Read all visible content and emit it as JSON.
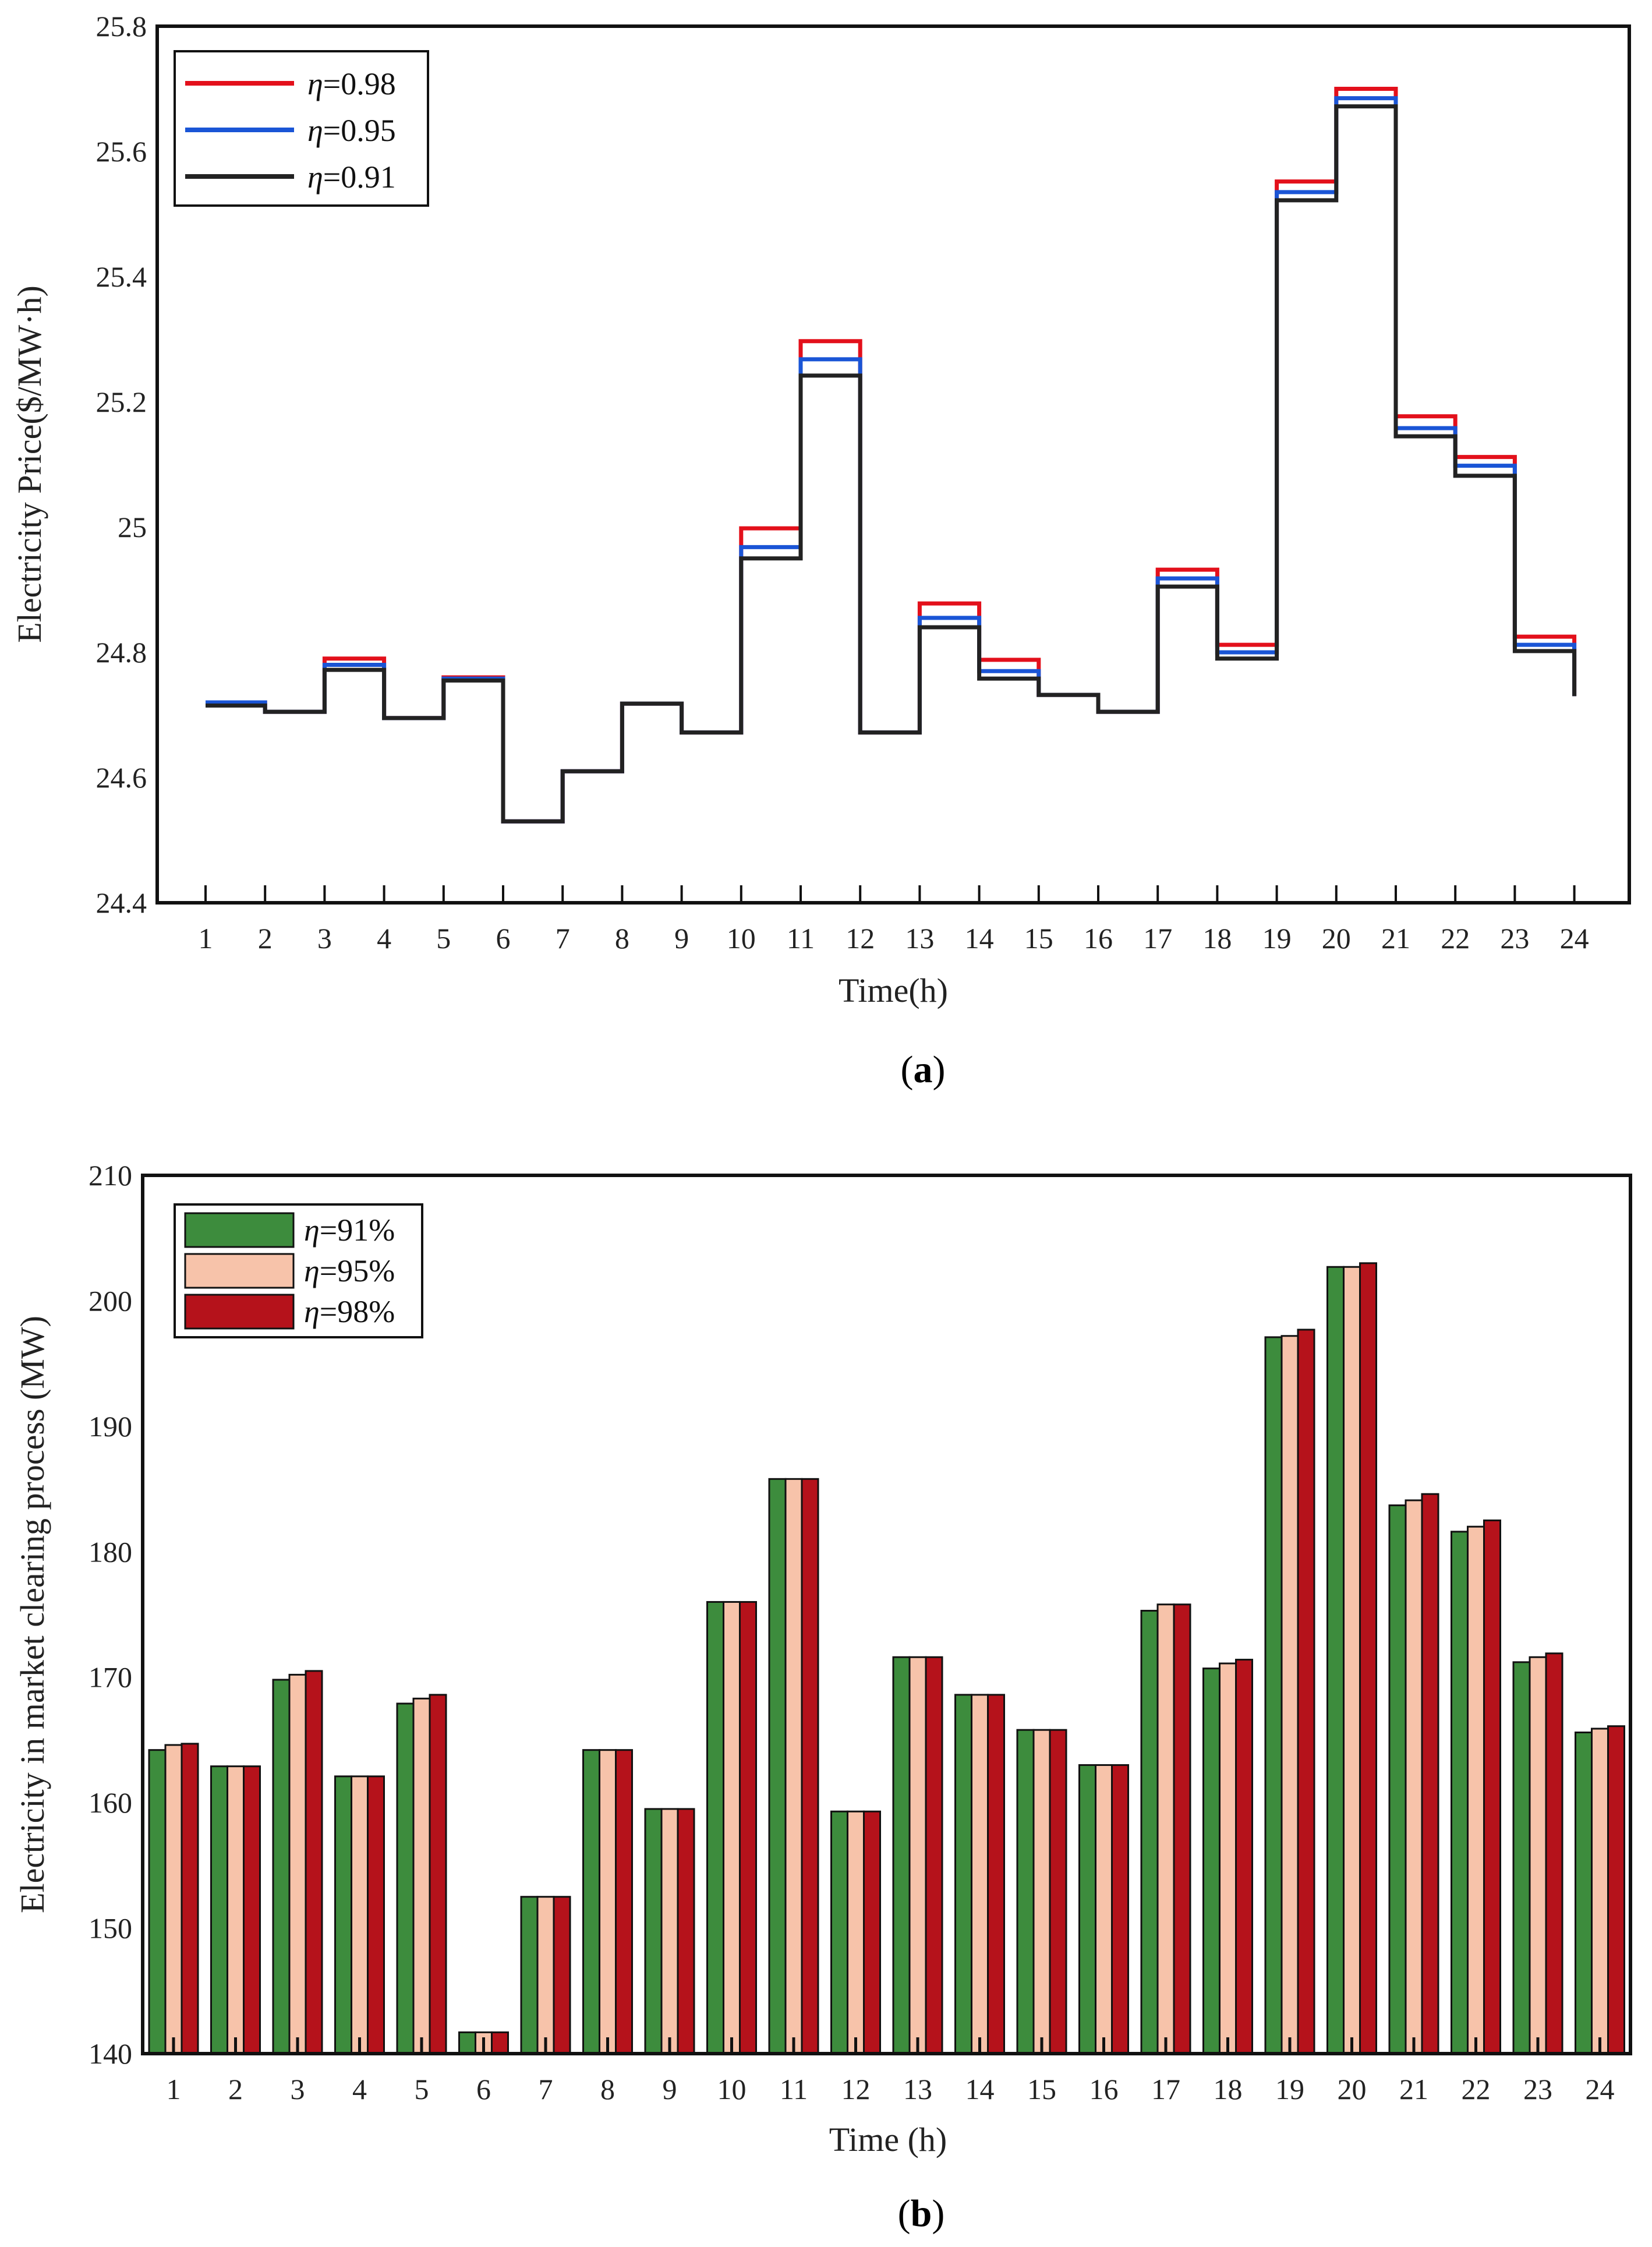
{
  "colors": {
    "red": "#e3101b",
    "blue": "#1a55d6",
    "black": "#222222",
    "green": "#3d8c3d",
    "peach": "#f7c3aa",
    "crimson": "#b5121b"
  },
  "chart_data": [
    {
      "id": "a",
      "type": "line",
      "step": true,
      "caption": "(a)",
      "caption_letter": "a",
      "xlabel": "Time(h)",
      "ylabel": "Electricity Price($/MW·h)",
      "ylim": [
        24.4,
        25.8
      ],
      "yticks": [
        "24.4",
        "24.6",
        "24.8",
        "25",
        "25.2",
        "25.4",
        "25.6",
        "25.8"
      ],
      "categories": [
        "1",
        "2",
        "3",
        "4",
        "5",
        "6",
        "7",
        "8",
        "9",
        "10",
        "11",
        "12",
        "13",
        "14",
        "15",
        "16",
        "17",
        "18",
        "19",
        "20",
        "21",
        "22",
        "23",
        "24"
      ],
      "legend_position": "top-left",
      "series": [
        {
          "name": "η=0.98",
          "symbol": "η",
          "label_value": "=0.98",
          "color": "#e3101b",
          "values": [
            24.72,
            24.705,
            24.79,
            24.695,
            24.76,
            24.53,
            24.61,
            24.718,
            24.672,
            24.998,
            25.297,
            24.672,
            24.878,
            24.788,
            24.732,
            24.705,
            24.932,
            24.812,
            25.552,
            25.7,
            25.177,
            25.112,
            24.825,
            24.73
          ]
        },
        {
          "name": "η=0.95",
          "symbol": "η",
          "label_value": "=0.95",
          "color": "#1a55d6",
          "values": [
            24.72,
            24.705,
            24.78,
            24.695,
            24.758,
            24.53,
            24.61,
            24.718,
            24.672,
            24.968,
            25.268,
            24.672,
            24.855,
            24.77,
            24.732,
            24.705,
            24.918,
            24.8,
            25.535,
            25.685,
            25.158,
            25.098,
            24.812,
            24.73
          ]
        },
        {
          "name": "η=0.91",
          "symbol": "η",
          "label_value": "=0.91",
          "color": "#222222",
          "values": [
            24.715,
            24.705,
            24.772,
            24.695,
            24.755,
            24.53,
            24.61,
            24.718,
            24.672,
            24.95,
            25.242,
            24.672,
            24.84,
            24.758,
            24.732,
            24.705,
            24.905,
            24.79,
            25.522,
            25.672,
            25.145,
            25.082,
            24.802,
            24.73
          ]
        }
      ]
    },
    {
      "id": "b",
      "type": "bar",
      "caption": "(b)",
      "caption_letter": "b",
      "xlabel": "Time (h)",
      "ylabel": "Electricity in market clearing process (MW)",
      "ylim": [
        140,
        210
      ],
      "yticks": [
        "140",
        "150",
        "160",
        "170",
        "180",
        "190",
        "200",
        "210"
      ],
      "categories": [
        "1",
        "2",
        "3",
        "4",
        "5",
        "6",
        "7",
        "8",
        "9",
        "10",
        "11",
        "12",
        "13",
        "14",
        "15",
        "16",
        "17",
        "18",
        "19",
        "20",
        "21",
        "22",
        "23",
        "24"
      ],
      "legend_position": "top-left",
      "series": [
        {
          "name": "η=91%",
          "symbol": "η",
          "label_value": "=91%",
          "color": "#3d8c3d",
          "values": [
            164.2,
            162.9,
            169.8,
            162.1,
            167.9,
            141.7,
            152.5,
            164.2,
            159.5,
            176.0,
            185.8,
            159.3,
            171.6,
            168.6,
            165.8,
            163.0,
            175.3,
            170.7,
            197.1,
            202.7,
            183.7,
            181.6,
            171.2,
            165.6
          ]
        },
        {
          "name": "η=95%",
          "symbol": "η",
          "label_value": "=95%",
          "color": "#f7c3aa",
          "values": [
            164.6,
            162.9,
            170.2,
            162.1,
            168.3,
            141.7,
            152.5,
            164.2,
            159.5,
            176.0,
            185.8,
            159.3,
            171.6,
            168.6,
            165.8,
            163.0,
            175.8,
            171.1,
            197.2,
            202.7,
            184.1,
            182.0,
            171.6,
            165.9
          ]
        },
        {
          "name": "η=98%",
          "symbol": "η",
          "label_value": "=98%",
          "color": "#b5121b",
          "values": [
            164.7,
            162.9,
            170.5,
            162.1,
            168.6,
            141.7,
            152.5,
            164.2,
            159.5,
            176.0,
            185.8,
            159.3,
            171.6,
            168.6,
            165.8,
            163.0,
            175.8,
            171.4,
            197.7,
            203.0,
            184.6,
            182.5,
            171.9,
            166.1
          ]
        }
      ]
    }
  ]
}
